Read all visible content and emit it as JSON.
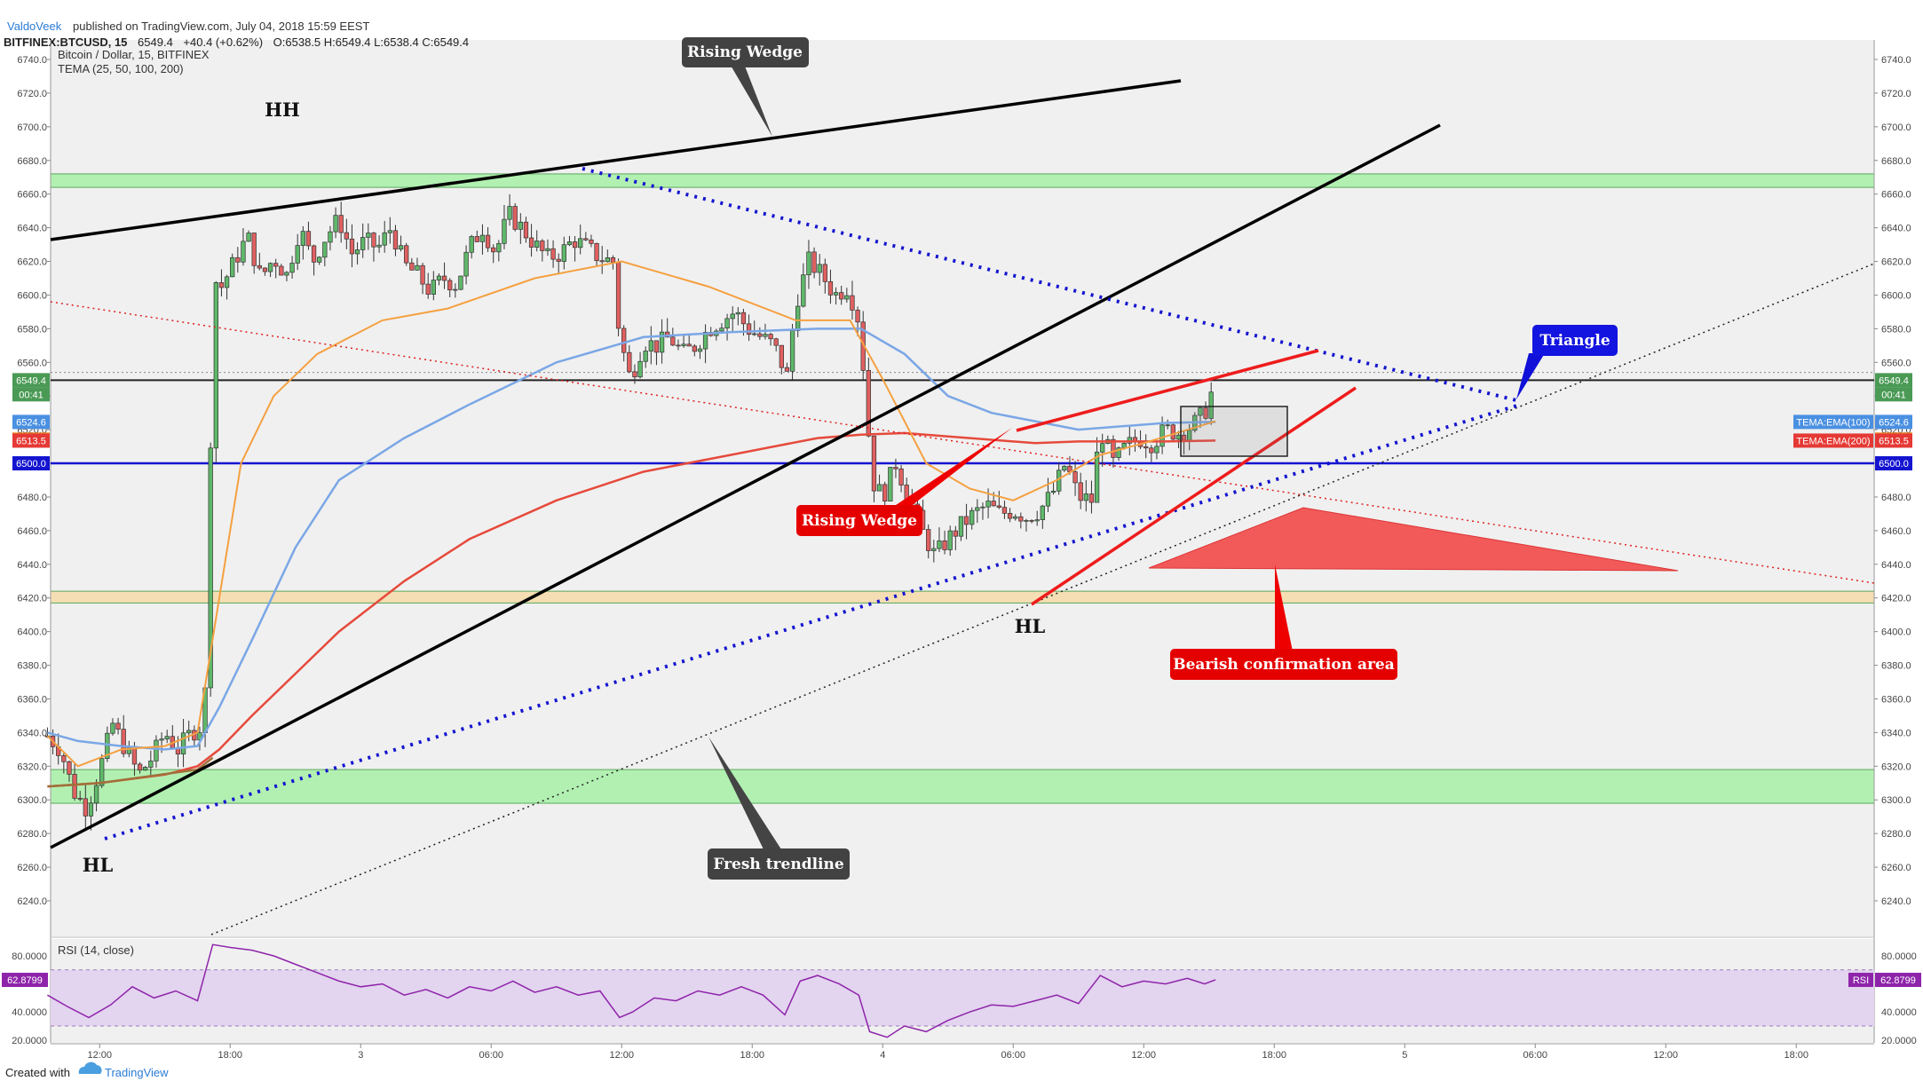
{
  "header": {
    "author": "ValdoVeek",
    "published_text": "published on TradingView.com, July 04, 2018 15:59 EEST",
    "symbol_line": "BITFINEX:BTCUSD, 15",
    "last": "6549.4",
    "change": "+40.4 (+0.62%)",
    "ohlc": "O:6538.5 H:6549.4 L:6538.4 C:6549.4"
  },
  "chart_data": {
    "type": "candlestick",
    "title": "Bitcoin / Dollar, 15, BITFINEX",
    "indicator": "TEMA (25, 50, 100, 200)",
    "y_range": [
      6220,
      6750
    ],
    "y_ticks": [
      6240,
      6260,
      6280,
      6300,
      6320,
      6340,
      6360,
      6380,
      6400,
      6420,
      6440,
      6460,
      6480,
      6500,
      6520,
      6540,
      6560,
      6580,
      6600,
      6620,
      6640,
      6660,
      6680,
      6700,
      6720,
      6740
    ],
    "y_tick_labels": [
      "6240.0",
      "6260.0",
      "6280.0",
      "6300.0",
      "6320.0",
      "6340.0",
      "6360.0",
      "6380.0",
      "6400.0",
      "6420.0",
      "6440.0",
      "6460.0",
      "6480.0",
      "6500.0",
      "6520.0",
      "6540.0",
      "6560.0",
      "6580.0",
      "6600.0",
      "6620.0",
      "6640.0",
      "6660.0",
      "6680.0",
      "6700.0",
      "6720.0",
      "6740.0"
    ],
    "time_range_hours": [
      9.5,
      66.7
    ],
    "time_ticks": [
      {
        "h": 12,
        "label": "12:00"
      },
      {
        "h": 18,
        "label": "18:00"
      },
      {
        "h": 24,
        "label": "3"
      },
      {
        "h": 30,
        "label": "06:00"
      },
      {
        "h": 36,
        "label": "12:00"
      },
      {
        "h": 42,
        "label": "18:00"
      },
      {
        "h": 48,
        "label": "4"
      },
      {
        "h": 54,
        "label": "06:00"
      },
      {
        "h": 60,
        "label": "12:00"
      },
      {
        "h": 66,
        "label": "18:00"
      },
      {
        "h": 72,
        "label": "5"
      },
      {
        "h": 78,
        "label": "06:00"
      },
      {
        "h": 84,
        "label": "12:00"
      },
      {
        "h": 90,
        "label": "18:00"
      }
    ],
    "price_path": [
      [
        9.6,
        6338
      ],
      [
        10.2,
        6330
      ],
      [
        10.8,
        6305
      ],
      [
        11.4,
        6295
      ],
      [
        12.0,
        6318
      ],
      [
        12.6,
        6345
      ],
      [
        13.2,
        6330
      ],
      [
        13.8,
        6315
      ],
      [
        14.4,
        6325
      ],
      [
        15.0,
        6340
      ],
      [
        15.6,
        6330
      ],
      [
        16.2,
        6340
      ],
      [
        16.8,
        6345
      ],
      [
        17.0,
        6420
      ],
      [
        17.2,
        6610
      ],
      [
        17.6,
        6605
      ],
      [
        18.2,
        6620
      ],
      [
        18.8,
        6635
      ],
      [
        19.4,
        6610
      ],
      [
        20.0,
        6622
      ],
      [
        20.6,
        6612
      ],
      [
        21.2,
        6640
      ],
      [
        21.8,
        6620
      ],
      [
        22.4,
        6635
      ],
      [
        23.0,
        6645
      ],
      [
        23.6,
        6625
      ],
      [
        24.2,
        6632
      ],
      [
        24.8,
        6628
      ],
      [
        25.4,
        6640
      ],
      [
        26.0,
        6618
      ],
      [
        26.6,
        6612
      ],
      [
        27.2,
        6602
      ],
      [
        27.8,
        6610
      ],
      [
        28.4,
        6606
      ],
      [
        29.0,
        6628
      ],
      [
        29.6,
        6640
      ],
      [
        30.2,
        6625
      ],
      [
        30.8,
        6648
      ],
      [
        31.4,
        6640
      ],
      [
        32.0,
        6630
      ],
      [
        32.6,
        6622
      ],
      [
        33.2,
        6625
      ],
      [
        33.8,
        6633
      ],
      [
        34.4,
        6628
      ],
      [
        35.0,
        6622
      ],
      [
        35.6,
        6620
      ],
      [
        35.9,
        6575
      ],
      [
        36.4,
        6550
      ],
      [
        37.0,
        6572
      ],
      [
        37.6,
        6570
      ],
      [
        38.2,
        6575
      ],
      [
        38.8,
        6565
      ],
      [
        39.4,
        6570
      ],
      [
        40.0,
        6580
      ],
      [
        40.6,
        6585
      ],
      [
        41.2,
        6590
      ],
      [
        41.8,
        6580
      ],
      [
        42.4,
        6575
      ],
      [
        43.0,
        6570
      ],
      [
        43.6,
        6552
      ],
      [
        44.0,
        6595
      ],
      [
        44.6,
        6620
      ],
      [
        45.2,
        6612
      ],
      [
        45.8,
        6600
      ],
      [
        46.4,
        6605
      ],
      [
        46.9,
        6585
      ],
      [
        47.2,
        6545
      ],
      [
        47.5,
        6490
      ],
      [
        48.0,
        6480
      ],
      [
        48.6,
        6500
      ],
      [
        49.2,
        6480
      ],
      [
        49.8,
        6460
      ],
      [
        50.4,
        6445
      ],
      [
        51.0,
        6455
      ],
      [
        51.6,
        6463
      ],
      [
        52.2,
        6470
      ],
      [
        52.8,
        6475
      ],
      [
        53.4,
        6470
      ],
      [
        54.0,
        6472
      ],
      [
        54.6,
        6468
      ],
      [
        55.2,
        6472
      ],
      [
        55.8,
        6482
      ],
      [
        56.4,
        6500
      ],
      [
        57.0,
        6480
      ],
      [
        57.6,
        6478
      ],
      [
        58.0,
        6520
      ],
      [
        58.6,
        6500
      ],
      [
        59.2,
        6510
      ],
      [
        59.8,
        6515
      ],
      [
        60.4,
        6512
      ],
      [
        61.0,
        6520
      ],
      [
        61.6,
        6518
      ],
      [
        62.2,
        6522
      ],
      [
        62.8,
        6530
      ],
      [
        63.3,
        6549
      ]
    ],
    "tema25": [
      [
        9.6,
        6338
      ],
      [
        11,
        6320
      ],
      [
        13,
        6330
      ],
      [
        15,
        6332
      ],
      [
        16.5,
        6340
      ],
      [
        17.5,
        6420
      ],
      [
        18.5,
        6500
      ],
      [
        20,
        6540
      ],
      [
        22,
        6565
      ],
      [
        25,
        6585
      ],
      [
        28,
        6592
      ],
      [
        32,
        6610
      ],
      [
        36,
        6620
      ],
      [
        40,
        6605
      ],
      [
        44,
        6585
      ],
      [
        46.5,
        6585
      ],
      [
        48,
        6550
      ],
      [
        50,
        6500
      ],
      [
        52,
        6485
      ],
      [
        54,
        6478
      ],
      [
        56,
        6490
      ],
      [
        58,
        6505
      ],
      [
        60,
        6512
      ],
      [
        63.3,
        6525
      ]
    ],
    "tema100": [
      [
        9.6,
        6340
      ],
      [
        11,
        6335
      ],
      [
        13,
        6332
      ],
      [
        15,
        6330
      ],
      [
        16.5,
        6332
      ],
      [
        17.5,
        6355
      ],
      [
        19,
        6395
      ],
      [
        21,
        6450
      ],
      [
        23,
        6490
      ],
      [
        26,
        6515
      ],
      [
        29,
        6535
      ],
      [
        33,
        6560
      ],
      [
        37,
        6575
      ],
      [
        41,
        6578
      ],
      [
        45,
        6580
      ],
      [
        47,
        6580
      ],
      [
        49,
        6565
      ],
      [
        51,
        6540
      ],
      [
        53,
        6530
      ],
      [
        55,
        6525
      ],
      [
        57,
        6520
      ],
      [
        59,
        6522
      ],
      [
        61,
        6524
      ],
      [
        63.3,
        6524.6
      ]
    ],
    "tema200": [
      [
        9.6,
        6308
      ],
      [
        12,
        6310
      ],
      [
        15,
        6315
      ],
      [
        16.5,
        6320
      ],
      [
        17.5,
        6330
      ],
      [
        19,
        6350
      ],
      [
        21,
        6375
      ],
      [
        23,
        6400
      ],
      [
        26,
        6430
      ],
      [
        29,
        6455
      ],
      [
        33,
        6478
      ],
      [
        37,
        6495
      ],
      [
        41,
        6505
      ],
      [
        45,
        6515
      ],
      [
        47,
        6517
      ],
      [
        49,
        6518
      ],
      [
        51,
        6516
      ],
      [
        53,
        6514
      ],
      [
        55,
        6512
      ],
      [
        57,
        6513
      ],
      [
        59,
        6513
      ],
      [
        61,
        6513
      ],
      [
        63.3,
        6513.5
      ]
    ],
    "price_badges": [
      {
        "label": "6549.4",
        "value": 6549.4,
        "color": "#4a9a55"
      },
      {
        "label": "00:41",
        "value": 6541,
        "color": "#4a9a55"
      },
      {
        "label": "6524.6",
        "value": 6524.6,
        "color": "#4a90e2"
      },
      {
        "label": "6514.1",
        "value": 6514.1,
        "color": "#f08a24"
      },
      {
        "label": "6513.5",
        "value": 6513.5,
        "color": "#e53935"
      },
      {
        "label": "6500.0",
        "value": 6500,
        "color": "#1414d0"
      }
    ],
    "ema_tags": [
      {
        "label": "TEMA:EMA(100)",
        "value": 6524.6,
        "color": "#4a90e2"
      },
      {
        "label": "TEMA:EMA(200)",
        "value": 6513.5,
        "color": "#e53935"
      }
    ],
    "zones": [
      {
        "from": 6664,
        "to": 6672,
        "color": "#b2f0b2"
      },
      {
        "from": 6417,
        "to": 6424,
        "color": "#f5deb3"
      },
      {
        "from": 6298,
        "to": 6318,
        "color": "#b2f0b2"
      }
    ],
    "annotations": {
      "hh": "HH",
      "hl_left": "HL",
      "hl_mid": "HL",
      "rising_wedge_top": "Rising Wedge",
      "rising_wedge_red": "Rising Wedge",
      "triangle": "Triangle",
      "fresh_trendline": "Fresh trendline",
      "bearish": "Bearish confirmation area"
    },
    "rsi": {
      "label": "RSI (14, close)",
      "value_label": "62.8799",
      "tag": "RSI",
      "y_range": [
        18,
        92
      ],
      "band": [
        30,
        70
      ],
      "ticks": [
        80,
        40,
        20
      ],
      "tick_labels": [
        "80.0000",
        "40.0000",
        "20.0000"
      ],
      "path": [
        [
          9.6,
          52
        ],
        [
          10.5,
          44
        ],
        [
          11.5,
          36
        ],
        [
          12.5,
          45
        ],
        [
          13.5,
          58
        ],
        [
          14.5,
          50
        ],
        [
          15.5,
          55
        ],
        [
          16.5,
          48
        ],
        [
          17.2,
          88
        ],
        [
          18,
          86
        ],
        [
          19,
          84
        ],
        [
          20,
          80
        ],
        [
          21,
          74
        ],
        [
          22,
          68
        ],
        [
          23,
          62
        ],
        [
          24,
          58
        ],
        [
          25,
          60
        ],
        [
          26,
          52
        ],
        [
          27,
          56
        ],
        [
          28,
          50
        ],
        [
          29,
          58
        ],
        [
          30,
          55
        ],
        [
          31,
          62
        ],
        [
          32,
          54
        ],
        [
          33,
          58
        ],
        [
          34,
          52
        ],
        [
          35,
          55
        ],
        [
          35.9,
          36
        ],
        [
          36.5,
          40
        ],
        [
          37.5,
          50
        ],
        [
          38.5,
          48
        ],
        [
          39.5,
          55
        ],
        [
          40.5,
          52
        ],
        [
          41.5,
          58
        ],
        [
          42.5,
          52
        ],
        [
          43.5,
          38
        ],
        [
          44.2,
          62
        ],
        [
          45,
          66
        ],
        [
          46,
          60
        ],
        [
          46.9,
          52
        ],
        [
          47.4,
          26
        ],
        [
          48.2,
          22
        ],
        [
          49,
          30
        ],
        [
          50,
          26
        ],
        [
          51,
          34
        ],
        [
          52,
          40
        ],
        [
          53,
          45
        ],
        [
          54,
          44
        ],
        [
          55,
          48
        ],
        [
          56,
          52
        ],
        [
          57,
          46
        ],
        [
          58,
          66
        ],
        [
          59,
          58
        ],
        [
          60,
          62
        ],
        [
          61,
          60
        ],
        [
          62,
          64
        ],
        [
          62.8,
          60
        ],
        [
          63.3,
          63
        ]
      ]
    }
  },
  "footer": {
    "created_with": "Created with",
    "brand": "TradingView"
  }
}
